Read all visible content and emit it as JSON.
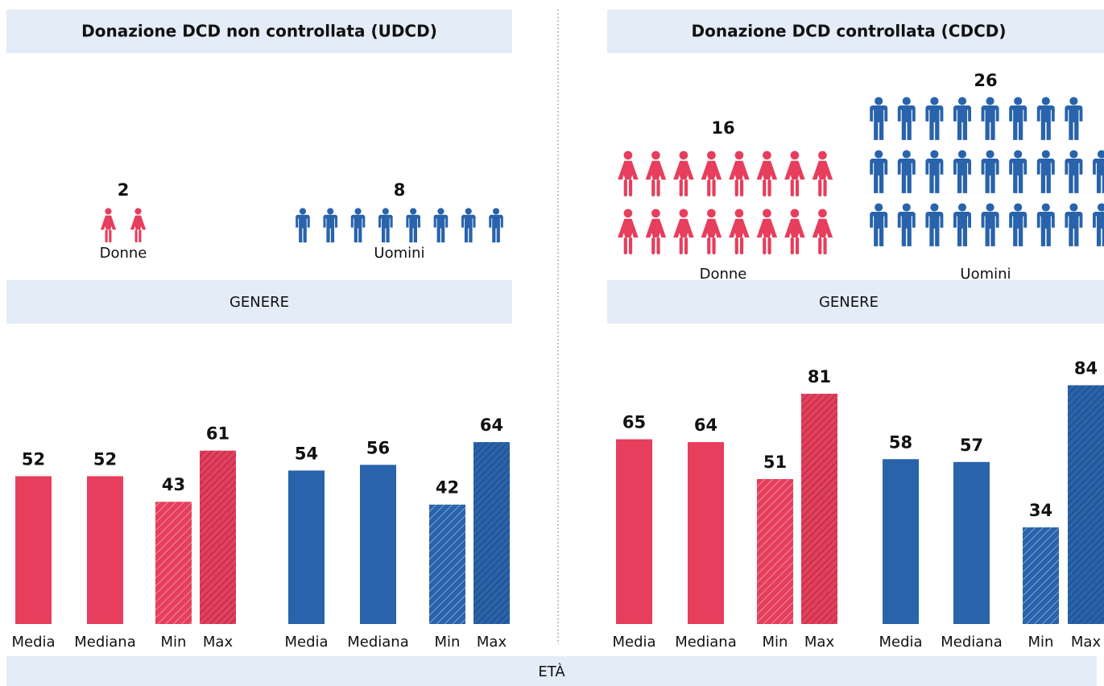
{
  "panels": [
    {
      "title": "Donazione DCD non controllata (UDCD)",
      "gender": {
        "label": "GENERE",
        "women": {
          "label": "Donne",
          "count": 2
        },
        "men": {
          "label": "Uomini",
          "count": 8
        }
      },
      "age": {
        "categories": [
          "Media",
          "Mediana",
          "Min",
          "Max"
        ],
        "women": [
          52,
          52,
          43,
          61
        ],
        "men": [
          54,
          56,
          42,
          64
        ]
      }
    },
    {
      "title": "Donazione DCD controllata (CDCD)",
      "gender": {
        "label": "GENERE",
        "women": {
          "label": "Donne",
          "count": 16
        },
        "men": {
          "label": "Uomini",
          "count": 26
        }
      },
      "age": {
        "categories": [
          "Media",
          "Mediana",
          "Min",
          "Max"
        ],
        "women": [
          65,
          64,
          51,
          81
        ],
        "men": [
          58,
          57,
          34,
          84
        ]
      }
    }
  ],
  "footer": "ETÀ",
  "colors": {
    "women": "#e63e5c",
    "men": "#2863ab"
  }
}
